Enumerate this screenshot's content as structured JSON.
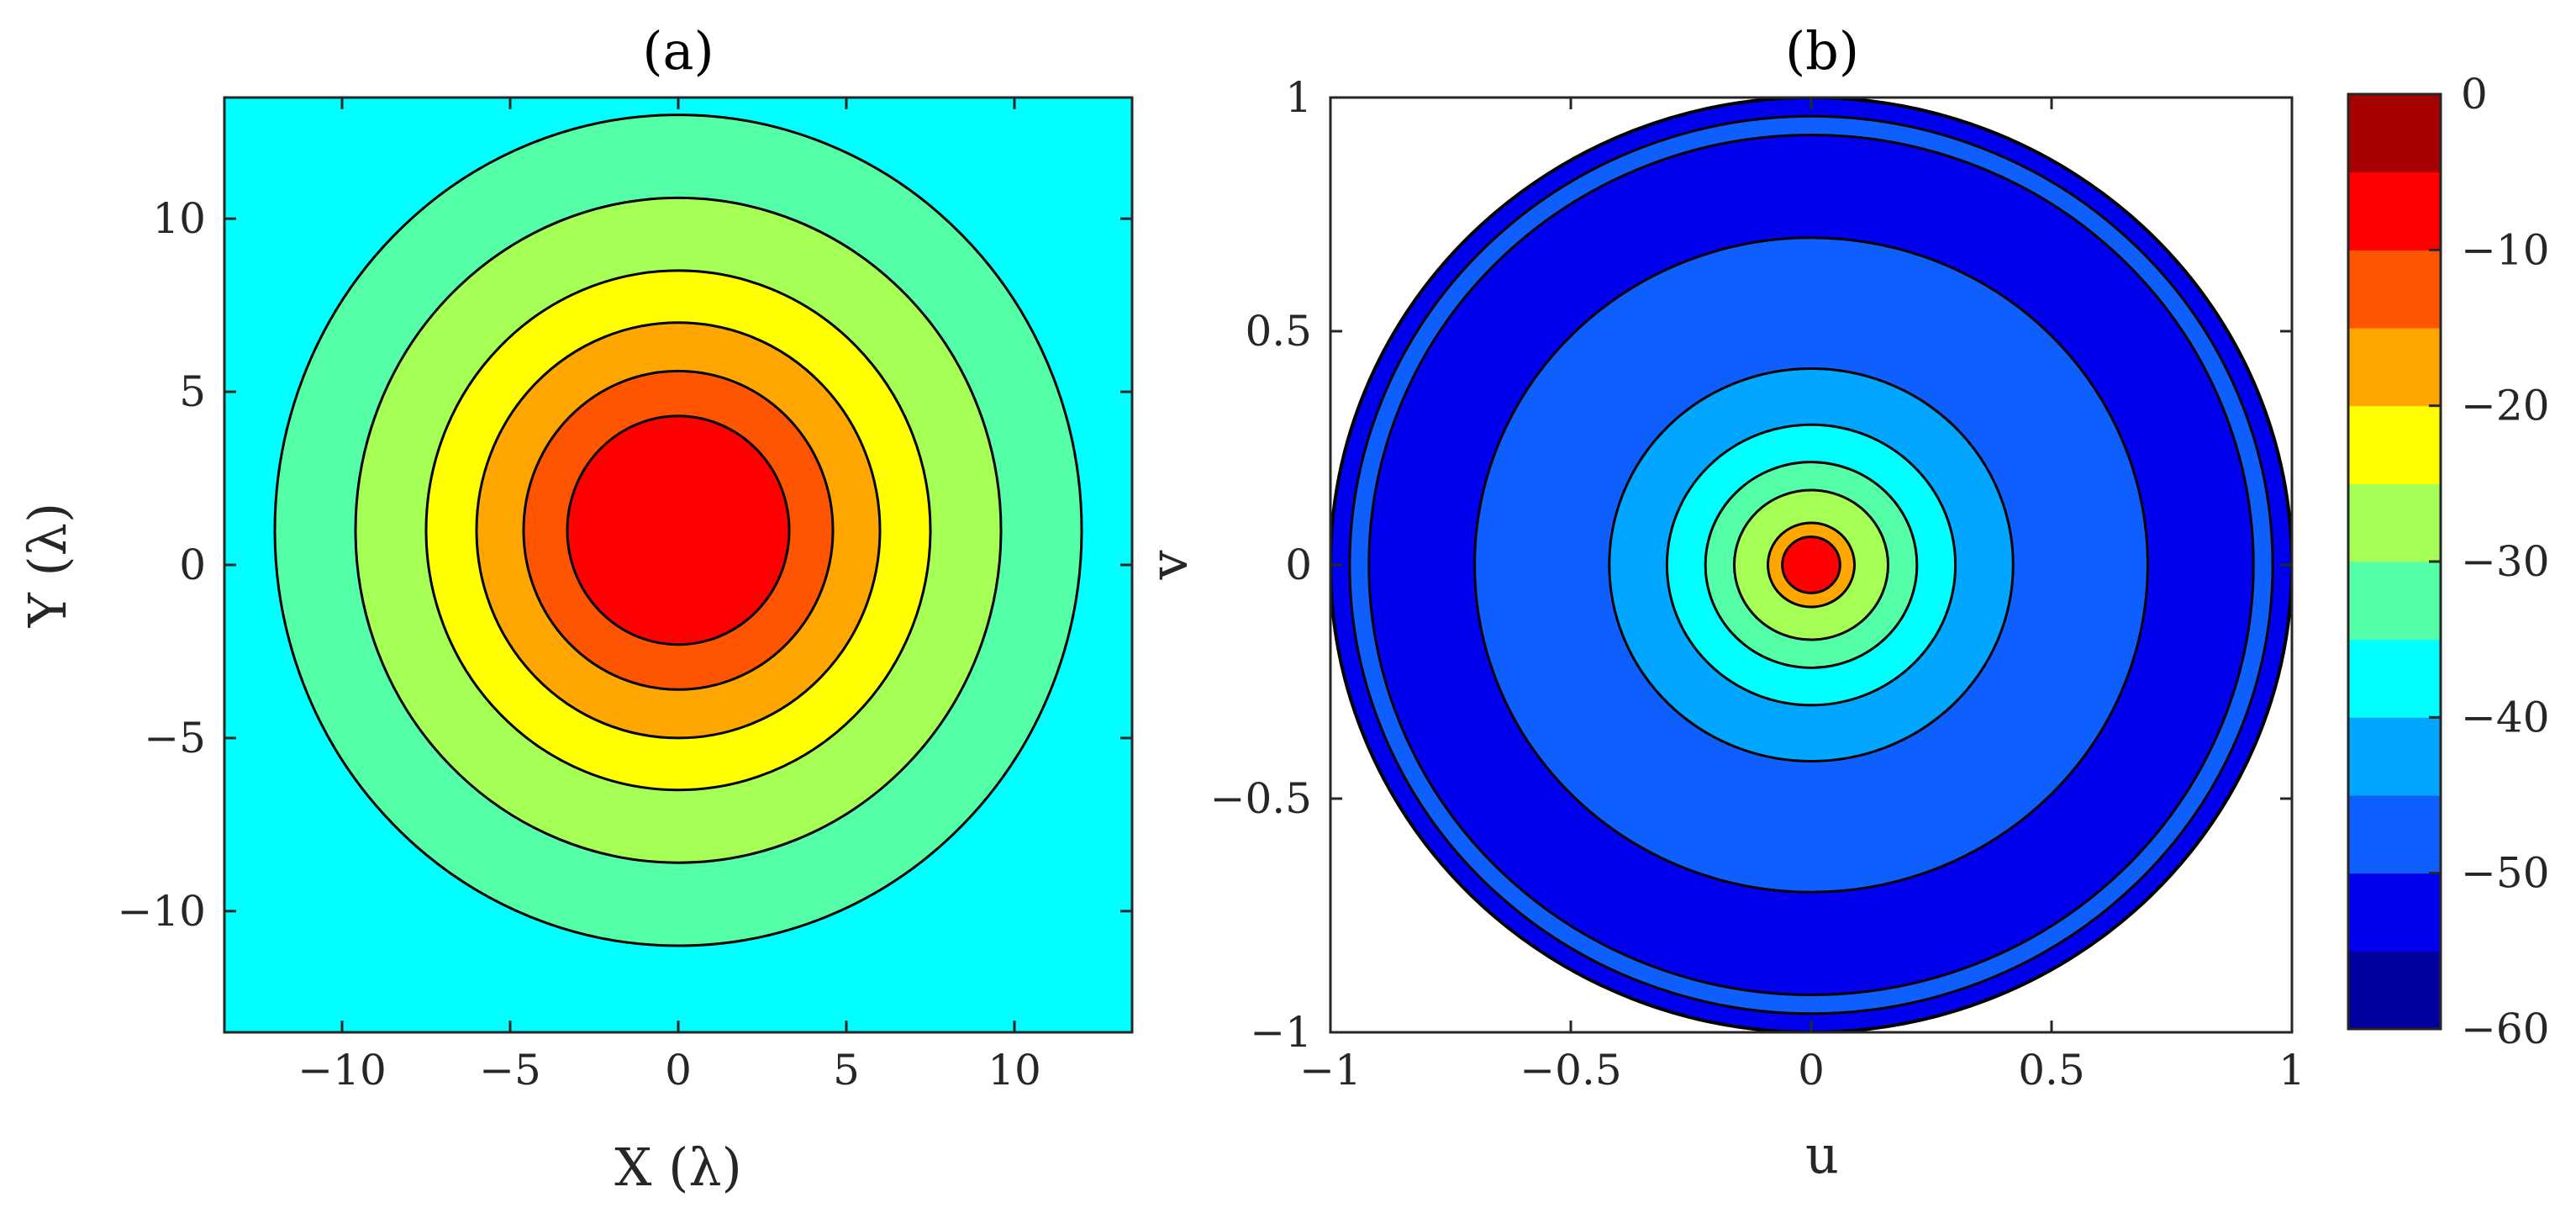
{
  "chart_data": [
    {
      "type": "contour",
      "title": "(a)",
      "xlabel": "X (λ)",
      "ylabel": "Y (λ)",
      "xlim": [
        -13.5,
        13.5
      ],
      "ylim": [
        -13.5,
        13.5
      ],
      "xticks": [
        -10,
        -5,
        0,
        5,
        10
      ],
      "yticks": [
        -10,
        -5,
        0,
        5,
        10
      ],
      "xtick_labels": [
        "−10",
        "−5",
        "0",
        "5",
        "10"
      ],
      "ytick_labels": [
        "−10",
        "−5",
        "0",
        "5",
        "10"
      ],
      "center": [
        0,
        1
      ],
      "contour_rings": [
        {
          "level": -10,
          "radius": 3.3
        },
        {
          "level": -15,
          "radius": 4.6
        },
        {
          "level": -20,
          "radius": 6.0
        },
        {
          "level": -25,
          "radius": 7.5
        },
        {
          "level": -30,
          "radius": 9.6
        },
        {
          "level": -35,
          "radius": 12.0
        }
      ]
    },
    {
      "type": "contour",
      "title": "(b)",
      "xlabel": "u",
      "ylabel": "v",
      "xlim": [
        -1,
        1
      ],
      "ylim": [
        -1,
        1
      ],
      "xticks": [
        -1,
        -0.5,
        0,
        0.5,
        1
      ],
      "yticks": [
        -1,
        -0.5,
        0,
        0.5,
        1
      ],
      "xtick_labels": [
        "−1",
        "−0.5",
        "0",
        "0.5",
        "1"
      ],
      "ytick_labels": [
        "−1",
        "−0.5",
        "0",
        "0.5",
        "1"
      ],
      "visible_region_radius": 1.0,
      "center": [
        0,
        0
      ],
      "contour_rings": [
        {
          "level": -10,
          "radius": 0.06
        },
        {
          "level": -20,
          "radius": 0.09
        },
        {
          "level": -30,
          "radius": 0.16
        },
        {
          "level": -35,
          "radius": 0.22
        },
        {
          "level": -40,
          "radius": 0.3
        },
        {
          "level": -45,
          "radius": 0.42
        },
        {
          "level": -50,
          "radius": 0.7
        },
        {
          "level": -55,
          "radius": 0.92
        }
      ]
    }
  ],
  "colorbar": {
    "min": -60,
    "max": 0,
    "step": 5,
    "tick_values": [
      0,
      -10,
      -20,
      -30,
      -40,
      -50,
      -60
    ],
    "tick_labels": [
      "0",
      "−10",
      "−20",
      "−30",
      "−40",
      "−50",
      "−60"
    ],
    "colors": [
      "#00009f",
      "#0000ef",
      "#0f5fff",
      "#00a6ff",
      "#00ffff",
      "#55ffa8",
      "#a6ff55",
      "#ffff00",
      "#ffa600",
      "#ff5500",
      "#ff0000",
      "#a60000"
    ]
  }
}
